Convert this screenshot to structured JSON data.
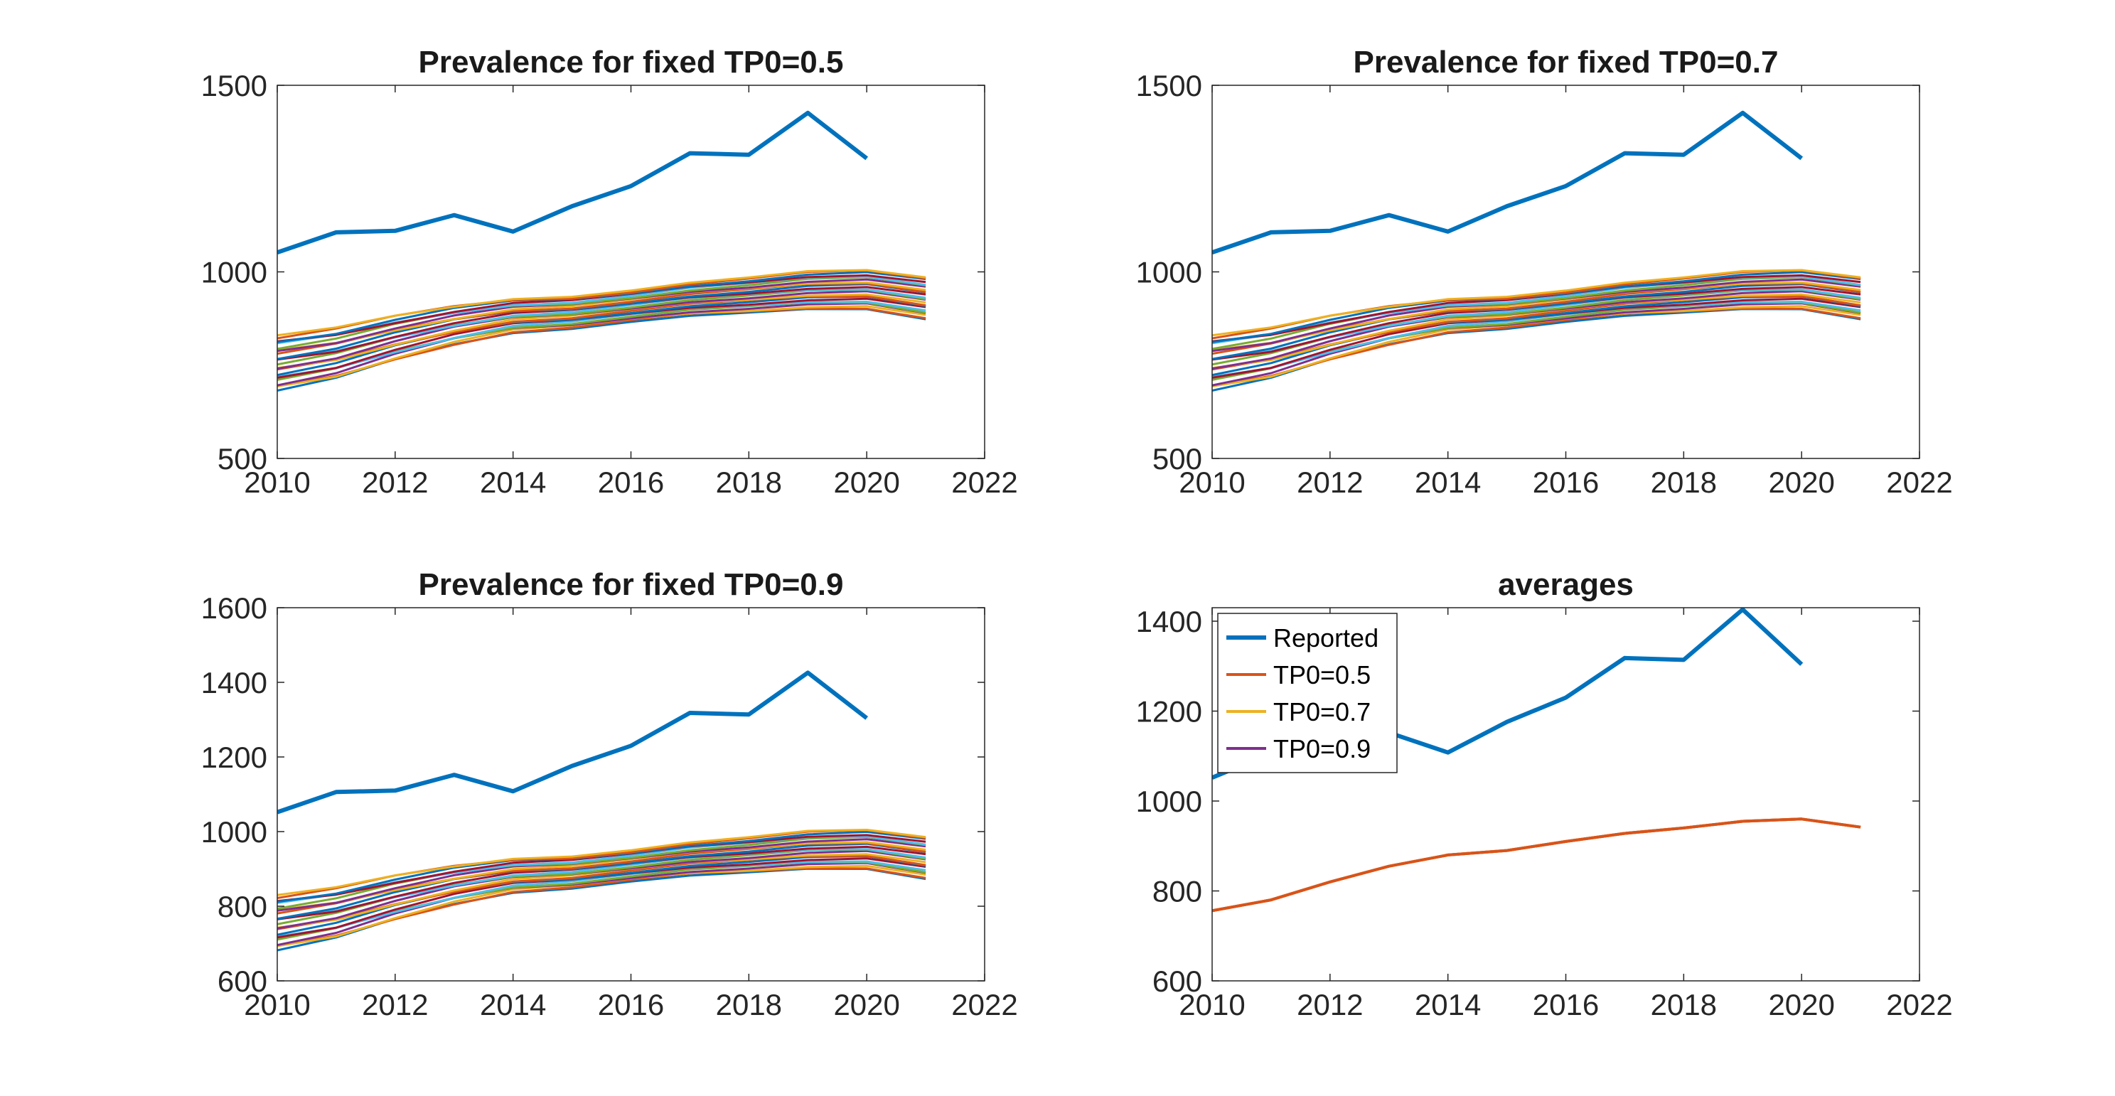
{
  "chart_data": [
    {
      "type": "line",
      "title": "Prevalence for fixed TP0=0.5",
      "xlim": [
        2010,
        2022
      ],
      "ylim": [
        500,
        1500
      ],
      "xticks": [
        2010,
        2012,
        2014,
        2016,
        2018,
        2020,
        2022
      ],
      "yticks": [
        500,
        1000,
        1500
      ],
      "series": [
        {
          "name": "Reported",
          "color": "#0072BD",
          "x": [
            2010,
            2011,
            2012,
            2013,
            2014,
            2015,
            2016,
            2017,
            2018,
            2019,
            2020
          ],
          "values": [
            1052,
            1106,
            1110,
            1152,
            1108,
            1176,
            1230,
            1318,
            1314,
            1426,
            1304
          ]
        }
      ],
      "ensemble": {
        "count": 24,
        "x": [
          2010,
          2011,
          2012,
          2013,
          2014,
          2015,
          2016,
          2017,
          2018,
          2019,
          2020,
          2021
        ],
        "lower": [
          682,
          712,
          762,
          804,
          836,
          847,
          866,
          882,
          889,
          898,
          899,
          873
        ],
        "upper": [
          830,
          851,
          883,
          910,
          929,
          934,
          950,
          971,
          985,
          1002,
          1007,
          988
        ]
      }
    },
    {
      "type": "line",
      "title": "Prevalence for fixed TP0=0.7",
      "xlim": [
        2010,
        2022
      ],
      "ylim": [
        500,
        1500
      ],
      "xticks": [
        2010,
        2012,
        2014,
        2016,
        2018,
        2020,
        2022
      ],
      "yticks": [
        500,
        1000,
        1500
      ],
      "series": [
        {
          "name": "Reported",
          "color": "#0072BD",
          "x": [
            2010,
            2011,
            2012,
            2013,
            2014,
            2015,
            2016,
            2017,
            2018,
            2019,
            2020
          ],
          "values": [
            1052,
            1106,
            1110,
            1152,
            1108,
            1176,
            1230,
            1318,
            1314,
            1426,
            1304
          ]
        }
      ],
      "ensemble": {
        "count": 24,
        "x": [
          2010,
          2011,
          2012,
          2013,
          2014,
          2015,
          2016,
          2017,
          2018,
          2019,
          2020,
          2021
        ],
        "lower": [
          682,
          712,
          762,
          804,
          836,
          847,
          866,
          882,
          889,
          898,
          899,
          873
        ],
        "upper": [
          830,
          851,
          883,
          910,
          929,
          934,
          950,
          971,
          985,
          1002,
          1007,
          988
        ]
      }
    },
    {
      "type": "line",
      "title": "Prevalence for fixed TP0=0.9",
      "xlim": [
        2010,
        2022
      ],
      "ylim": [
        600,
        1600
      ],
      "xticks": [
        2010,
        2012,
        2014,
        2016,
        2018,
        2020,
        2022
      ],
      "yticks": [
        600,
        800,
        1000,
        1200,
        1400,
        1600
      ],
      "series": [
        {
          "name": "Reported",
          "color": "#0072BD",
          "x": [
            2010,
            2011,
            2012,
            2013,
            2014,
            2015,
            2016,
            2017,
            2018,
            2019,
            2020
          ],
          "values": [
            1052,
            1106,
            1110,
            1152,
            1108,
            1176,
            1230,
            1318,
            1314,
            1426,
            1304
          ]
        }
      ],
      "ensemble": {
        "count": 24,
        "x": [
          2010,
          2011,
          2012,
          2013,
          2014,
          2015,
          2016,
          2017,
          2018,
          2019,
          2020,
          2021
        ],
        "lower": [
          682,
          712,
          762,
          804,
          836,
          847,
          866,
          882,
          889,
          898,
          899,
          873
        ],
        "upper": [
          830,
          851,
          883,
          910,
          929,
          934,
          950,
          971,
          985,
          1002,
          1007,
          988
        ]
      }
    },
    {
      "type": "line",
      "title": "averages",
      "xlim": [
        2010,
        2022
      ],
      "ylim": [
        600,
        1430
      ],
      "xticks": [
        2010,
        2012,
        2014,
        2016,
        2018,
        2020,
        2022
      ],
      "yticks": [
        600,
        800,
        1000,
        1200,
        1400
      ],
      "legend": "top-left",
      "series": [
        {
          "name": "Reported",
          "color": "#0072BD",
          "x": [
            2010,
            2011,
            2012,
            2013,
            2014,
            2015,
            2016,
            2017,
            2018,
            2019,
            2020
          ],
          "values": [
            1052,
            1106,
            1110,
            1152,
            1108,
            1176,
            1230,
            1318,
            1314,
            1426,
            1304
          ]
        },
        {
          "name": "TP0=0.5",
          "color": "#D95319",
          "x": [
            2010,
            2011,
            2012,
            2013,
            2014,
            2015,
            2016,
            2017,
            2018,
            2019,
            2020,
            2021
          ],
          "values": [
            756,
            780,
            820,
            855,
            880,
            890,
            910,
            928,
            940,
            955,
            960,
            942
          ]
        },
        {
          "name": "TP0=0.7",
          "color": "#EDB120",
          "x": [
            2010,
            2011,
            2012,
            2013,
            2014,
            2015,
            2016,
            2017,
            2018,
            2019,
            2020,
            2021
          ],
          "values": [
            756,
            780,
            820,
            855,
            880,
            890,
            910,
            928,
            940,
            955,
            960,
            942
          ]
        },
        {
          "name": "TP0=0.9",
          "color": "#7E2F8E",
          "x": [
            2010,
            2011,
            2012,
            2013,
            2014,
            2015,
            2016,
            2017,
            2018,
            2019,
            2020,
            2021
          ],
          "values": [
            756,
            780,
            820,
            855,
            880,
            890,
            910,
            928,
            940,
            955,
            960,
            942
          ]
        }
      ]
    }
  ]
}
